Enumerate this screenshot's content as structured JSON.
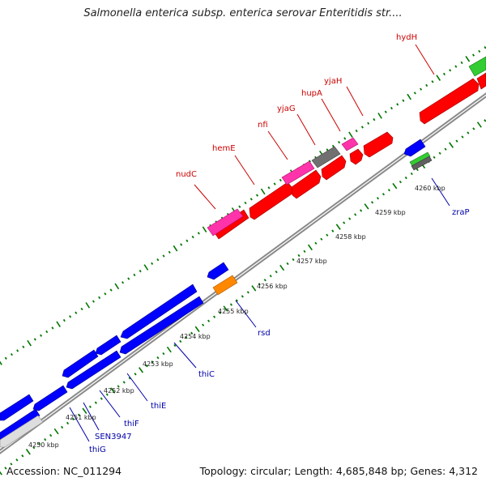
{
  "title": "Salmonella enterica subsp. enterica serovar Enteritidis str....",
  "footer": {
    "accession": "Accession: NC_011294",
    "topology": "Topology: circular; Length: 4,685,848 bp; Genes: 4,312"
  },
  "colors": {
    "forward_gene": "#ff0000",
    "reverse_gene": "#0000ff",
    "pink_feature": "#ff33aa",
    "grey_feature": "#707070",
    "orange_feature": "#ff8800",
    "green_feature": "#33cc33",
    "backbone": "#a0a0a0",
    "tick": "#007700",
    "label_forward": "#cc0000",
    "label_reverse": "#0000aa"
  },
  "scale": [
    {
      "label": "4250 kbp"
    },
    {
      "label": "4251 kbp"
    },
    {
      "label": "4252 kbp"
    },
    {
      "label": "4253 kbp"
    },
    {
      "label": "4254 kbp"
    },
    {
      "label": "4255 kbp"
    },
    {
      "label": "4256 kbp"
    },
    {
      "label": "4257 kbp"
    },
    {
      "label": "4258 kbp"
    },
    {
      "label": "4259 kbp"
    },
    {
      "label": "4260 kbp"
    }
  ],
  "forward_labels": [
    {
      "name": "nudC"
    },
    {
      "name": "hemE"
    },
    {
      "name": "nfi"
    },
    {
      "name": "yjaG"
    },
    {
      "name": "hupA"
    },
    {
      "name": "yjaH"
    },
    {
      "name": "hydH"
    }
  ],
  "reverse_labels": [
    {
      "name": "thiG"
    },
    {
      "name": "SEN3947"
    },
    {
      "name": "thiF"
    },
    {
      "name": "thiE"
    },
    {
      "name": "thiC"
    },
    {
      "name": "rsd"
    },
    {
      "name": "zraP"
    }
  ]
}
